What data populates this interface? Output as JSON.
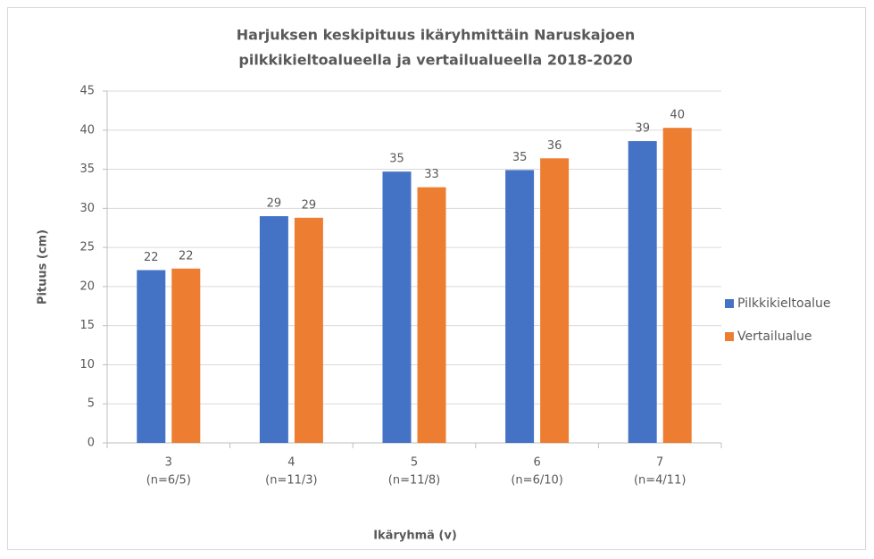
{
  "chart_data": {
    "type": "bar",
    "title": [
      "Harjuksen keskipituus ikäryhmittäin Naruskajoen",
      "pilkkikieltoalueella ja vertailualueella 2018-2020"
    ],
    "x_label": "Ikäryhmä (v)",
    "y_label": "Pituus (cm)",
    "categories": [
      [
        "3",
        "(n=6/5)"
      ],
      [
        "4",
        "(n=11/3)"
      ],
      [
        "5",
        "(n=11/8)"
      ],
      [
        "6",
        "(n=6/10)"
      ],
      [
        "7",
        "(n=4/11)"
      ]
    ],
    "series": [
      {
        "name": "Pilkkikieltoalue",
        "color": "#4472c4",
        "values": [
          22.1,
          29.0,
          34.7,
          34.9,
          38.6
        ],
        "value_labels": [
          "22",
          "29",
          "35",
          "35",
          "39"
        ]
      },
      {
        "name": "Vertailualue",
        "color": "#ed7d31",
        "values": [
          22.3,
          28.8,
          32.7,
          36.4,
          40.3
        ],
        "value_labels": [
          "22",
          "29",
          "33",
          "36",
          "40"
        ]
      }
    ],
    "ylim": [
      0,
      45
    ],
    "yticks": [
      0,
      5,
      10,
      15,
      20,
      25,
      30,
      35,
      40,
      45
    ],
    "grid": true,
    "legend": "right"
  }
}
